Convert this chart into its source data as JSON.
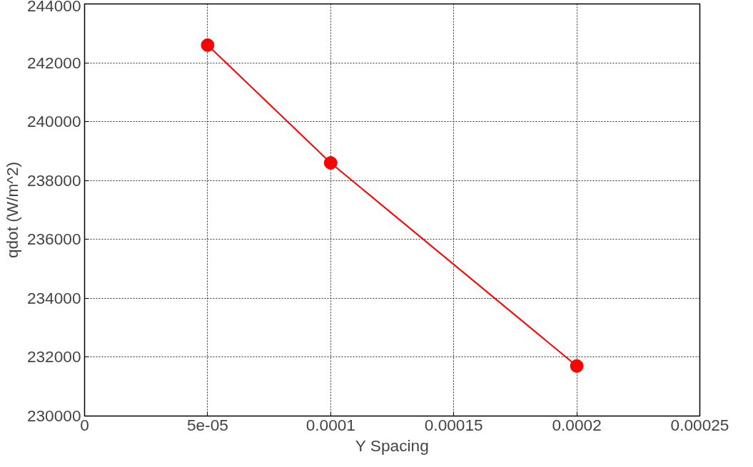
{
  "chart_data": {
    "type": "line",
    "xlabel": "Y Spacing",
    "ylabel": "qdot (W/m^2)",
    "x": [
      5e-05,
      0.0001,
      0.0002
    ],
    "series": [
      {
        "color": "#ff0000",
        "values": [
          242600,
          238600,
          231700
        ]
      }
    ],
    "xlim": [
      0,
      0.00025
    ],
    "xticks": [
      0,
      "5e-05",
      0.0001,
      0.00015,
      0.0002,
      0.00025
    ],
    "ylim": [
      230000,
      244000
    ],
    "yticks": [
      230000,
      232000,
      234000,
      236000,
      238000,
      240000,
      242000,
      244000
    ],
    "grid": true,
    "marker": "circle",
    "line_style": "solid"
  }
}
